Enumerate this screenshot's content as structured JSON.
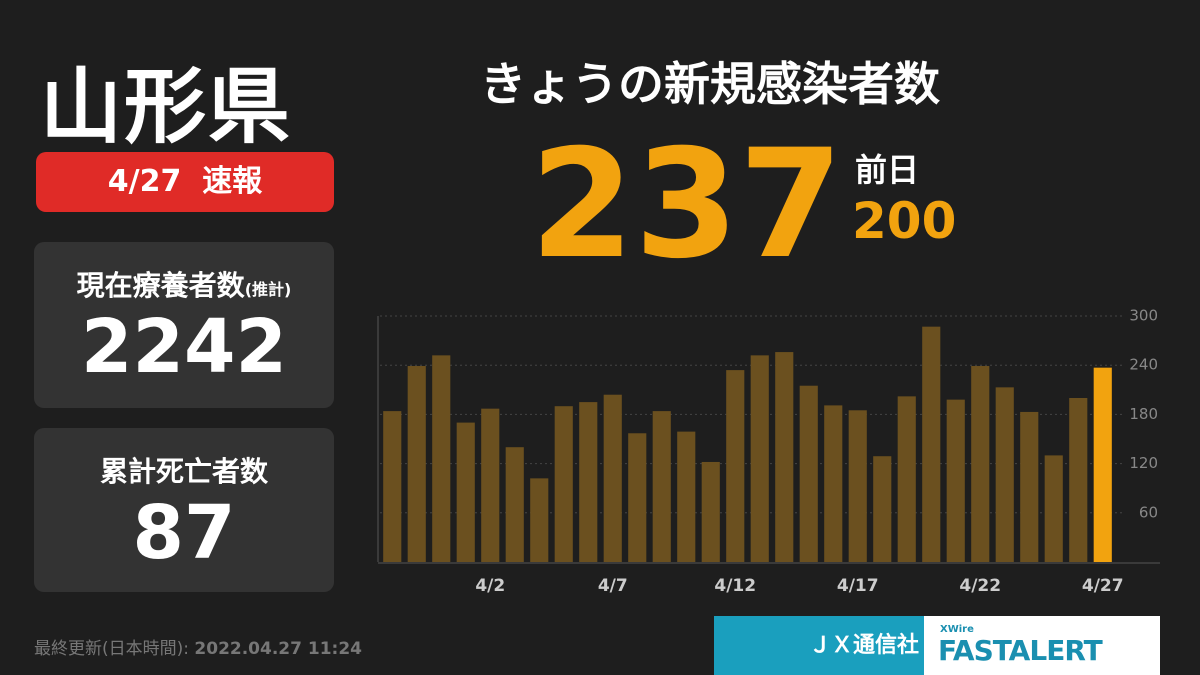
{
  "prefecture": "山形県",
  "badge": {
    "date": "4/27",
    "label": "速報"
  },
  "panels": [
    {
      "label": "現在療養者数",
      "note": "(推計)",
      "value": "2242"
    },
    {
      "label": "累計死亡者数",
      "value": "87"
    }
  ],
  "headline": {
    "title": "きょうの新規感染者数",
    "value": "237",
    "prev_label": "前日",
    "prev_value": "200"
  },
  "footer": {
    "updated_label": "最終更新(日本時間):",
    "updated": "2022.04.27 11:24",
    "brand1": "ＪＸ通信社",
    "brand2_small": "XWire",
    "brand2": "FASTALERT"
  },
  "chart_data": {
    "type": "bar",
    "categories": [
      null,
      null,
      null,
      null,
      "4/2",
      null,
      null,
      null,
      null,
      "4/7",
      null,
      null,
      null,
      null,
      "4/12",
      null,
      null,
      null,
      null,
      "4/17",
      null,
      null,
      null,
      null,
      "4/22",
      null,
      null,
      null,
      null,
      "4/27"
    ],
    "values": [
      184,
      239,
      252,
      170,
      187,
      140,
      102,
      190,
      195,
      204,
      157,
      184,
      159,
      122,
      234,
      252,
      256,
      215,
      191,
      185,
      129,
      202,
      287,
      198,
      239,
      213,
      183,
      130,
      200,
      237
    ],
    "colors": [
      "#6b501f",
      "#6b501f",
      "#6b501f",
      "#6b501f",
      "#6b501f",
      "#6b501f",
      "#6b501f",
      "#6b501f",
      "#6b501f",
      "#6b501f",
      "#6b501f",
      "#6b501f",
      "#6b501f",
      "#6b501f",
      "#6b501f",
      "#6b501f",
      "#6b501f",
      "#6b501f",
      "#6b501f",
      "#6b501f",
      "#6b501f",
      "#6b501f",
      "#6b501f",
      "#6b501f",
      "#6b501f",
      "#6b501f",
      "#6b501f",
      "#6b501f",
      "#6b501f",
      "#f2a30f"
    ],
    "ylim": [
      0,
      300
    ],
    "yticks": [
      60,
      120,
      180,
      240,
      300
    ],
    "grid": true
  }
}
